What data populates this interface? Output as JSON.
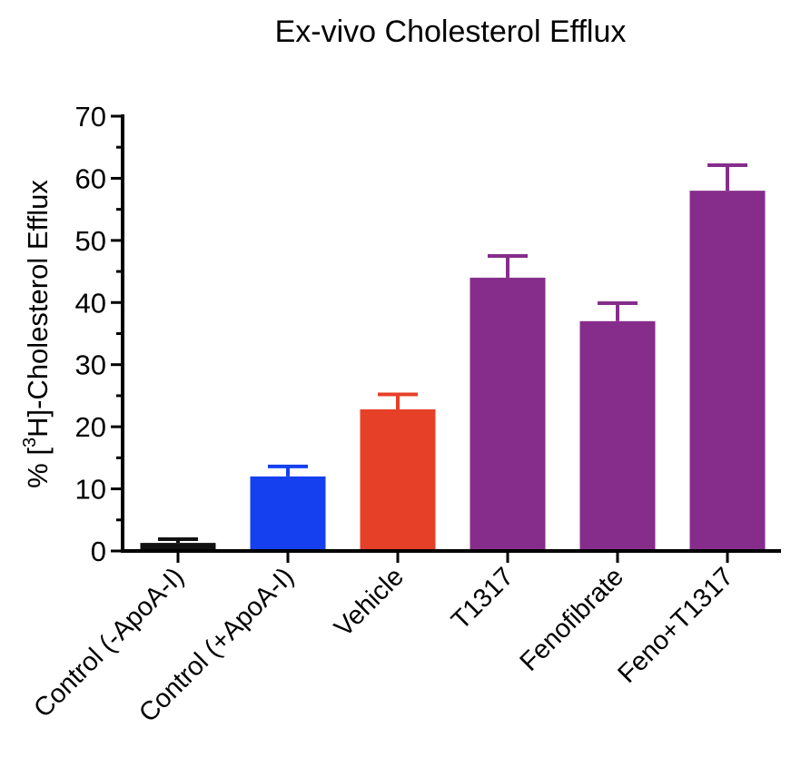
{
  "chart_data": {
    "type": "bar",
    "title": "Ex-vivo Cholesterol Efflux",
    "ylabel": {
      "prefix": "% [",
      "superscript": "3",
      "suffix": "H]-Cholesterol Efflux"
    },
    "xlabel": "",
    "ylim": [
      0,
      70
    ],
    "yticks": [
      0,
      10,
      20,
      30,
      40,
      50,
      60,
      70
    ],
    "minor_ticks_per_major": 1,
    "categories": [
      "Control (-ApoA-I)",
      "Control (+ApoA-I)",
      "Vehicle",
      "T1317",
      "Fenofibrate",
      "Feno+T1317"
    ],
    "values": [
      1.3,
      12.0,
      22.8,
      44.0,
      37.0,
      58.0
    ],
    "error_upper": [
      0.6,
      1.6,
      2.4,
      3.5,
      2.9,
      4.1
    ],
    "colors": [
      "#111111",
      "#1440f0",
      "#e64028",
      "#862d8c",
      "#862d8c",
      "#862d8c"
    ],
    "grid": false,
    "legend": "none"
  }
}
